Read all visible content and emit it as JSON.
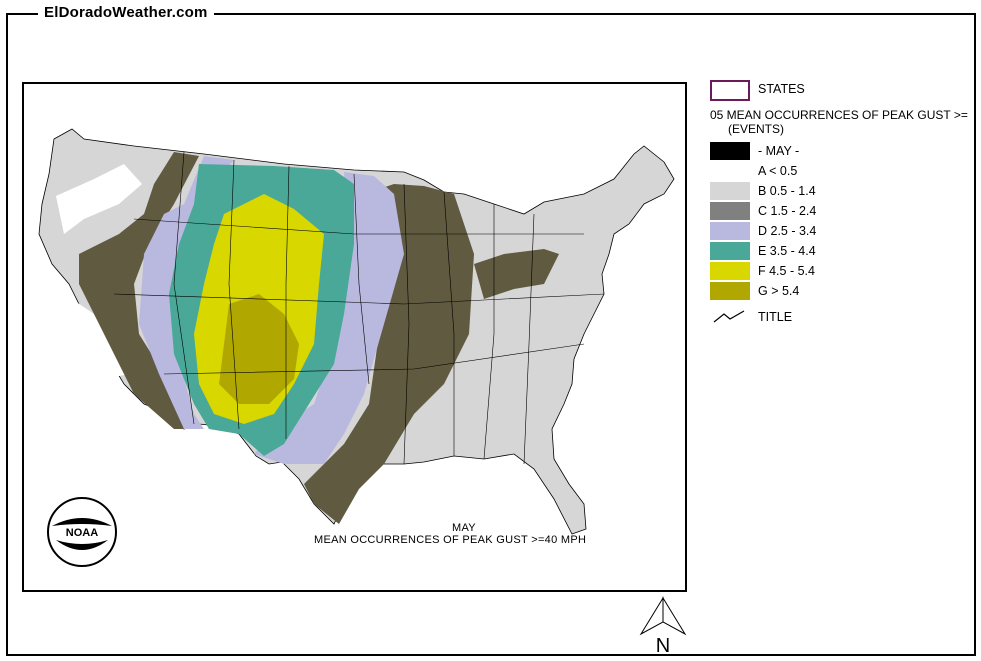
{
  "site": {
    "title": "ElDoradoWeather.com"
  },
  "map": {
    "caption_month": "MAY",
    "caption_title": "MEAN OCCURRENCES OF PEAK GUST >=40 MPH",
    "logo_text": "NOAA"
  },
  "legend": {
    "states_label": "STATES",
    "title_line1": "05 MEAN OCCURRENCES OF PEAK GUST >=",
    "title_line2": "(EVENTS)",
    "month_label": "- MAY -",
    "classes": [
      {
        "label": "A < 0.5",
        "color": "#ffffff"
      },
      {
        "label": "B 0.5 - 1.4",
        "color": "#d6d6d6"
      },
      {
        "label": "C 1.5 - 2.4",
        "color": "#808080"
      },
      {
        "label": "D 2.5 - 3.4",
        "color": "#b9b9e0"
      },
      {
        "label": "E 3.5 - 4.4",
        "color": "#4aa898"
      },
      {
        "label": "F 4.5 - 5.4",
        "color": "#d8d800"
      },
      {
        "label": "G > 5.4",
        "color": "#b0a800"
      }
    ],
    "title_symbol_label": "TITLE"
  },
  "map_extra_colors": {
    "dark_band": "#5f5a40"
  },
  "north_arrow": {
    "label": "N"
  }
}
